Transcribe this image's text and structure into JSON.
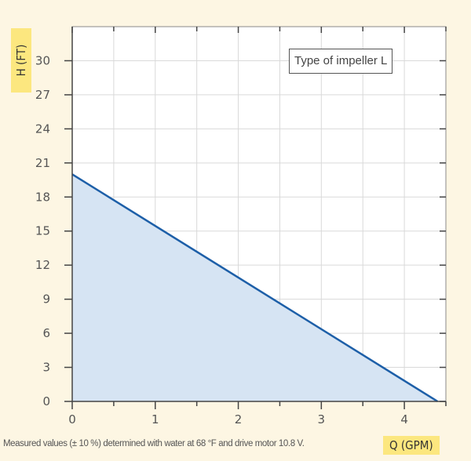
{
  "chart_data": {
    "type": "area",
    "x": [
      0,
      4.4
    ],
    "series": [
      {
        "values": [
          20,
          0
        ],
        "color": "#1d5fa8",
        "fill": "#d6e4f3"
      }
    ],
    "xlabel": "Q (GPM)",
    "ylabel": "H (FT)",
    "xlim": [
      0,
      4.5
    ],
    "ylim": [
      0,
      33
    ],
    "xticks": [
      0,
      1,
      2,
      3,
      4
    ],
    "yticks": [
      0,
      3,
      6,
      9,
      12,
      15,
      18,
      21,
      24,
      27,
      30
    ],
    "grid": true,
    "annotation": "Type of impeller L",
    "footnote": "Measured values (± 10 %) determined with water at 68 °F and drive motor 10.8 V."
  },
  "colors": {
    "background": "#fdf6e3",
    "label_highlight": "#fce77f",
    "grid": "#d9d9d9"
  }
}
